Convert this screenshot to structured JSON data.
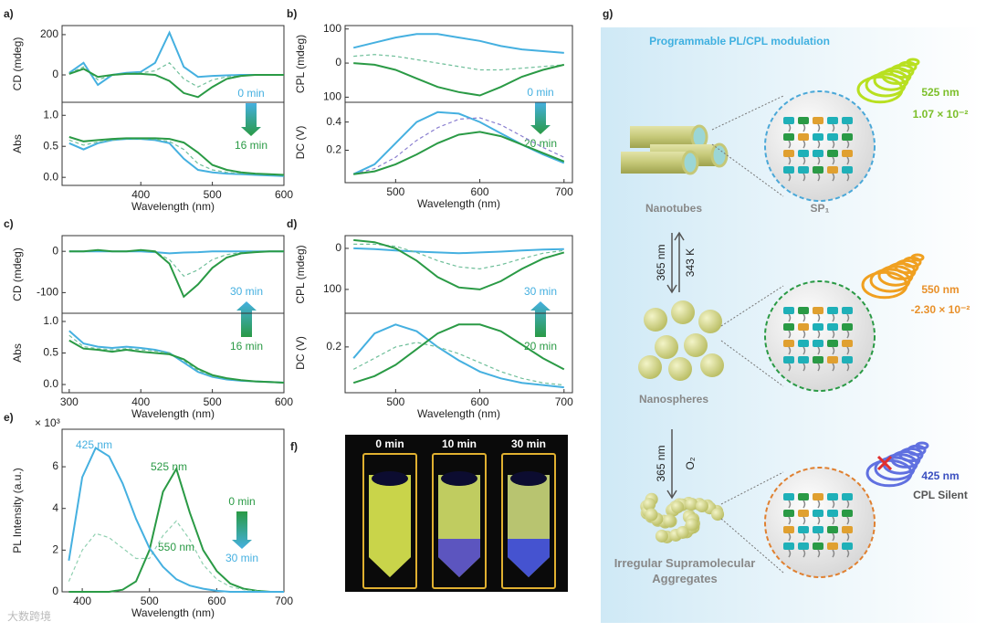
{
  "chart_data": [
    {
      "type": "line",
      "panel": "a)",
      "ylabel": "CD (mdeg)",
      "xlim": [
        290,
        600
      ],
      "ylim": [
        -136,
        245
      ],
      "yticks": [
        0,
        200
      ],
      "legend_arrow": "down",
      "x": [
        300,
        320,
        340,
        360,
        380,
        400,
        420,
        440,
        460,
        480,
        500,
        520,
        540,
        560,
        580,
        600
      ],
      "series": [
        {
          "name": "0 min",
          "color": "#45b0e0",
          "values": [
            10,
            60,
            -50,
            0,
            10,
            15,
            60,
            210,
            40,
            -10,
            -5,
            -2,
            0,
            0,
            0,
            0
          ]
        },
        {
          "color": "#6fbf9a",
          "dash": true,
          "values": [
            8,
            40,
            -25,
            0,
            8,
            10,
            20,
            60,
            -20,
            -60,
            -25,
            -10,
            -3,
            0,
            0,
            0
          ]
        },
        {
          "name": "16 min",
          "color": "#2a9a45",
          "values": [
            5,
            30,
            -10,
            0,
            5,
            5,
            0,
            -30,
            -90,
            -110,
            -60,
            -20,
            -5,
            0,
            0,
            0
          ]
        }
      ]
    },
    {
      "type": "line",
      "ylabel": "Abs",
      "xlabel": "Wavelength (nm)",
      "xlim": [
        290,
        600
      ],
      "ylim": [
        -0.13,
        1.21
      ],
      "xticks": [
        400,
        500,
        600
      ],
      "yticks": [
        {
          "value": 0,
          "label": "0.0"
        },
        0.5,
        {
          "value": 1,
          "label": "1.0"
        }
      ],
      "x": [
        300,
        320,
        340,
        360,
        380,
        400,
        420,
        440,
        460,
        480,
        500,
        520,
        540,
        560,
        580,
        600
      ],
      "series": [
        {
          "color": "#45b0e0",
          "values": [
            0.55,
            0.45,
            0.55,
            0.6,
            0.62,
            0.62,
            0.6,
            0.55,
            0.3,
            0.12,
            0.08,
            0.06,
            0.05,
            0.04,
            0.03,
            0.02
          ]
        },
        {
          "color": "#6fbf9a",
          "dash": true,
          "values": [
            0.6,
            0.52,
            0.57,
            0.6,
            0.62,
            0.62,
            0.61,
            0.58,
            0.45,
            0.22,
            0.12,
            0.08,
            0.06,
            0.05,
            0.04,
            0.03
          ]
        },
        {
          "color": "#2a9a45",
          "values": [
            0.65,
            0.58,
            0.6,
            0.62,
            0.63,
            0.63,
            0.63,
            0.62,
            0.56,
            0.4,
            0.2,
            0.12,
            0.08,
            0.06,
            0.05,
            0.04
          ]
        }
      ]
    },
    {
      "type": "line",
      "panel": "b)",
      "ylabel": "CPL (mdeg)",
      "xlim": [
        440,
        710
      ],
      "ylim": [
        -115,
        110
      ],
      "yticks": [
        100,
        0,
        {
          "value": -100,
          "label": "100"
        }
      ],
      "legend_arrow": "down",
      "x": [
        450,
        475,
        500,
        525,
        550,
        575,
        600,
        625,
        650,
        675,
        700
      ],
      "series": [
        {
          "name": "0 min",
          "color": "#45b0e0",
          "values": [
            45,
            60,
            75,
            85,
            85,
            75,
            65,
            50,
            40,
            35,
            30
          ]
        },
        {
          "color": "#6fbf9a",
          "dash": true,
          "values": [
            20,
            25,
            20,
            10,
            0,
            -10,
            -20,
            -20,
            -15,
            -10,
            -5
          ]
        },
        {
          "name": "20 min",
          "color": "#2a9a45",
          "values": [
            0,
            -5,
            -20,
            -45,
            -70,
            -85,
            -95,
            -70,
            -40,
            -20,
            -5
          ]
        }
      ]
    },
    {
      "type": "line",
      "ylabel": "DC (V)",
      "xlabel": "Wavelength (nm)",
      "xlim": [
        440,
        710
      ],
      "ylim": [
        -0.03,
        0.54
      ],
      "xticks": [
        500,
        600,
        700
      ],
      "yticks": [
        0.2,
        0.4
      ],
      "x": [
        450,
        475,
        500,
        525,
        550,
        575,
        600,
        625,
        650,
        675,
        700
      ],
      "series": [
        {
          "color": "#45b0e0",
          "values": [
            0.03,
            0.1,
            0.25,
            0.4,
            0.47,
            0.46,
            0.4,
            0.32,
            0.24,
            0.17,
            0.11
          ]
        },
        {
          "color": "#8a7fd0",
          "dash": true,
          "values": [
            0.03,
            0.07,
            0.15,
            0.27,
            0.36,
            0.42,
            0.43,
            0.38,
            0.3,
            0.22,
            0.15
          ]
        },
        {
          "color": "#2a9a45",
          "values": [
            0.03,
            0.05,
            0.1,
            0.17,
            0.25,
            0.31,
            0.33,
            0.3,
            0.24,
            0.18,
            0.12
          ]
        }
      ]
    },
    {
      "type": "line",
      "panel": "c)",
      "ylabel": "CD (mdeg)",
      "xlim": [
        290,
        600
      ],
      "ylim": [
        -150,
        38
      ],
      "yticks": [
        0,
        -100
      ],
      "legend_arrow": "up",
      "x": [
        300,
        320,
        340,
        360,
        380,
        400,
        420,
        440,
        460,
        480,
        500,
        520,
        540,
        560,
        580,
        600
      ],
      "series": [
        {
          "name": "30 min",
          "color": "#45b0e0",
          "values": [
            0,
            0,
            0,
            0,
            0,
            0,
            -2,
            -5,
            -3,
            -2,
            0,
            0,
            0,
            0,
            0,
            0
          ]
        },
        {
          "color": "#6fbf9a",
          "dash": true,
          "values": [
            0,
            0,
            2,
            0,
            0,
            2,
            -2,
            -20,
            -60,
            -45,
            -20,
            -8,
            -3,
            0,
            0,
            0
          ]
        },
        {
          "name": "16 min",
          "color": "#2a9a45",
          "values": [
            0,
            0,
            3,
            0,
            0,
            3,
            0,
            -30,
            -110,
            -80,
            -40,
            -15,
            -5,
            -2,
            0,
            0
          ]
        }
      ]
    },
    {
      "type": "line",
      "ylabel": "Abs",
      "xlabel": "Wavelength (nm)",
      "xlim": [
        290,
        600
      ],
      "ylim": [
        -0.13,
        1.13
      ],
      "xticks": [
        300,
        400,
        500,
        600
      ],
      "yticks": [
        {
          "value": 0,
          "label": "0.0"
        },
        0.5,
        {
          "value": 1,
          "label": "1.0"
        }
      ],
      "x": [
        300,
        320,
        340,
        360,
        380,
        400,
        420,
        440,
        460,
        480,
        500,
        520,
        540,
        560,
        580,
        600
      ],
      "series": [
        {
          "color": "#45b0e0",
          "values": [
            0.85,
            0.65,
            0.6,
            0.58,
            0.6,
            0.58,
            0.55,
            0.5,
            0.35,
            0.2,
            0.12,
            0.08,
            0.06,
            0.05,
            0.04,
            0.03
          ]
        },
        {
          "color": "#6fbf9a",
          "dash": true,
          "values": [
            0.78,
            0.6,
            0.57,
            0.55,
            0.57,
            0.55,
            0.53,
            0.5,
            0.38,
            0.22,
            0.13,
            0.09,
            0.07,
            0.05,
            0.04,
            0.03
          ]
        },
        {
          "color": "#2a9a45",
          "values": [
            0.7,
            0.57,
            0.55,
            0.52,
            0.55,
            0.52,
            0.5,
            0.48,
            0.4,
            0.25,
            0.15,
            0.1,
            0.07,
            0.05,
            0.04,
            0.03
          ]
        }
      ]
    },
    {
      "type": "line",
      "panel": "d)",
      "ylabel": "CPL (mdeg)",
      "xlim": [
        440,
        710
      ],
      "ylim": [
        -158,
        31
      ],
      "yticks": [
        0,
        {
          "value": -100,
          "label": "100"
        }
      ],
      "legend_arrow": "up",
      "x": [
        450,
        475,
        500,
        525,
        550,
        575,
        600,
        625,
        650,
        675,
        700
      ],
      "series": [
        {
          "name": "30 min",
          "color": "#45b0e0",
          "values": [
            0,
            -2,
            -5,
            -8,
            -10,
            -12,
            -10,
            -8,
            -5,
            -3,
            -2
          ]
        },
        {
          "color": "#6fbf9a",
          "dash": true,
          "values": [
            10,
            10,
            5,
            -10,
            -30,
            -45,
            -50,
            -40,
            -25,
            -12,
            -5
          ]
        },
        {
          "name": "20 min",
          "color": "#2a9a45",
          "values": [
            20,
            15,
            0,
            -30,
            -70,
            -95,
            -100,
            -80,
            -50,
            -25,
            -10
          ]
        }
      ]
    },
    {
      "type": "line",
      "ylabel": "DC (V)",
      "xlabel": "Wavelength (nm)",
      "xlim": [
        440,
        710
      ],
      "ylim": [
        -0.004,
        0.35
      ],
      "xticks": [
        500,
        600,
        700
      ],
      "yticks": [
        0.2
      ],
      "x": [
        450,
        475,
        500,
        525,
        550,
        575,
        600,
        625,
        650,
        675,
        700
      ],
      "series": [
        {
          "color": "#45b0e0",
          "values": [
            0.15,
            0.26,
            0.3,
            0.27,
            0.2,
            0.14,
            0.09,
            0.06,
            0.04,
            0.03,
            0.02
          ]
        },
        {
          "color": "#6fbf9a",
          "dash": true,
          "values": [
            0.1,
            0.15,
            0.2,
            0.22,
            0.2,
            0.17,
            0.13,
            0.09,
            0.06,
            0.04,
            0.03
          ]
        },
        {
          "color": "#2a9a45",
          "values": [
            0.04,
            0.07,
            0.12,
            0.19,
            0.26,
            0.3,
            0.3,
            0.27,
            0.21,
            0.15,
            0.1
          ]
        }
      ]
    },
    {
      "type": "line",
      "panel": "e)",
      "ylabel": "PL Intensity (a.u.)",
      "xlabel": "Wavelength (nm)",
      "multiplier": "× 10³",
      "xlim": [
        370,
        700
      ],
      "ylim": [
        0,
        7.8
      ],
      "xticks": [
        400,
        500,
        600,
        700
      ],
      "yticks": [
        0,
        2,
        4,
        6
      ],
      "legend_arrow": "down",
      "annotations": [
        "425 nm",
        "525 nm",
        "550 nm"
      ],
      "x": [
        380,
        400,
        420,
        440,
        460,
        480,
        500,
        520,
        540,
        560,
        580,
        600,
        620,
        640,
        660,
        680,
        700
      ],
      "series": [
        {
          "name": "0 min",
          "color": "#2a9a45",
          "values": [
            0,
            0,
            0,
            0,
            0.1,
            0.5,
            2.0,
            4.8,
            5.9,
            3.8,
            2.0,
            1.0,
            0.4,
            0.15,
            0.05,
            0,
            0
          ]
        },
        {
          "color": "#8fd0b0",
          "dash": true,
          "values": [
            0.5,
            2,
            2.8,
            2.6,
            2.1,
            1.6,
            1.6,
            2.7,
            3.4,
            2.5,
            1.3,
            0.6,
            0.25,
            0.1,
            0.03,
            0,
            0
          ]
        },
        {
          "name": "30 min",
          "color": "#45b0e0",
          "values": [
            1.5,
            5.5,
            6.9,
            6.5,
            5.2,
            3.5,
            2.1,
            1.2,
            0.6,
            0.3,
            0.15,
            0.05,
            0,
            0,
            0,
            0,
            0
          ]
        }
      ]
    }
  ],
  "photo": {
    "panel": "f)",
    "labels": [
      "0 min",
      "10 min",
      "30 min"
    ]
  },
  "diagram": {
    "panel": "g)",
    "title": "Programmable PL/CPL modulation",
    "unit_label": "SP₁",
    "states": [
      {
        "name": "Nanotubes",
        "wavelength": "525 nm",
        "cpl": "1.07 × 10⁻²"
      },
      {
        "name": "Nanospheres",
        "wavelength": "550 nm",
        "cpl": "-2.30 × 10⁻²"
      },
      {
        "name": "Irregular Supramolecular Aggregates",
        "wavelength": "425 nm",
        "cpl": "CPL Silent"
      }
    ],
    "steps": [
      {
        "forward": "365 nm",
        "reverse": "343 K"
      },
      {
        "forward": "365 nm",
        "reverse": "O₂"
      }
    ]
  },
  "watermark": "大数跨境"
}
